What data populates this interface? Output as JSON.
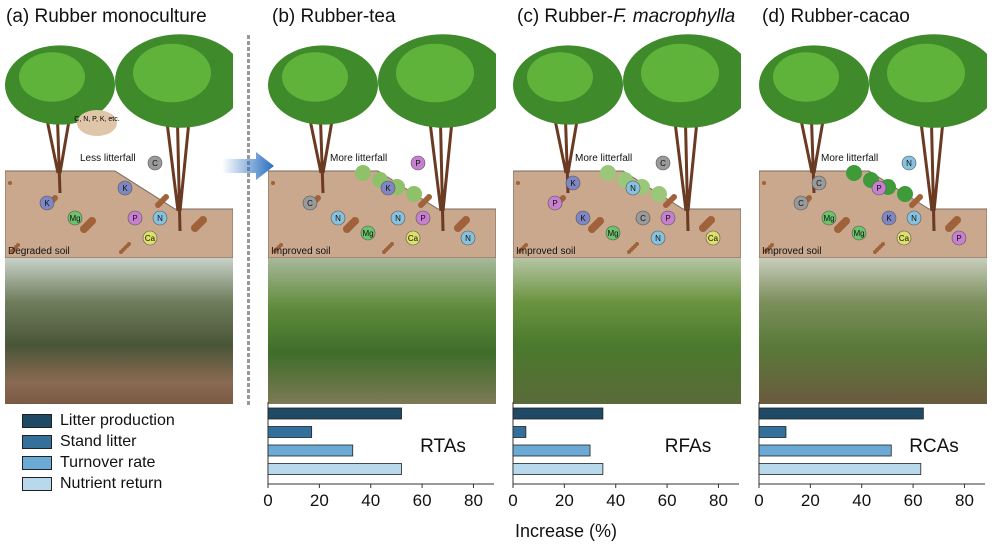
{
  "panels": [
    {
      "title": "(a) Rubber monoculture",
      "litter_label": "Less litterfall",
      "soil_label": "Degraded soil",
      "bubble": "C, N, P, K, etc.",
      "nutrients": [
        "C",
        "K",
        "K",
        "Mg",
        "P",
        "N",
        "Ca"
      ]
    },
    {
      "title": "(b) Rubber-tea",
      "litter_label": "More litterfall",
      "soil_label": "Improved soil",
      "nutrients": [
        "P",
        "C",
        "K",
        "N",
        "N",
        "P",
        "Ca",
        "Mg",
        "N"
      ]
    },
    {
      "title_prefix": "(c) Rubber-",
      "title_italic": "F. macrophylla",
      "litter_label": "More litterfall",
      "soil_label": "Improved soil",
      "nutrients": [
        "C",
        "P",
        "N",
        "K",
        "C",
        "P",
        "N",
        "Mg",
        "Ca",
        "K"
      ]
    },
    {
      "title": "(d) Rubber-cacao",
      "litter_label": "More litterfall",
      "soil_label": "Improved soil",
      "nutrients": [
        "N",
        "C",
        "P",
        "Mg",
        "K",
        "N",
        "Ca",
        "Mg",
        "P",
        "C"
      ]
    }
  ],
  "nutrient_colors": {
    "C": "#9a9a9a",
    "K": "#7f86c4",
    "Mg": "#6cc46a",
    "P": "#c77fd0",
    "Ca": "#dde06a",
    "N": "#86c2de"
  },
  "legend": [
    {
      "label": "Litter production",
      "color": "#1f4a66"
    },
    {
      "label": "Stand litter",
      "color": "#33719c"
    },
    {
      "label": "Turnover rate",
      "color": "#6aaad4"
    },
    {
      "label": "Nutrient return",
      "color": "#b8d9ec"
    }
  ],
  "chart_data": [
    {
      "type": "bar",
      "orientation": "horizontal",
      "label": "RTAs",
      "categories": [
        "Litter production",
        "Stand litter",
        "Turnover rate",
        "Nutrient return"
      ],
      "values": [
        52,
        17,
        33,
        52
      ],
      "xlim": [
        0,
        88
      ],
      "xticks": [
        0,
        20,
        40,
        60,
        80
      ]
    },
    {
      "type": "bar",
      "orientation": "horizontal",
      "label": "RFAs",
      "categories": [
        "Litter production",
        "Stand litter",
        "Turnover rate",
        "Nutrient return"
      ],
      "values": [
        35,
        5,
        30,
        35
      ],
      "xlim": [
        0,
        88
      ],
      "xticks": [
        0,
        20,
        40,
        60,
        80
      ]
    },
    {
      "type": "bar",
      "orientation": "horizontal",
      "label": "RCAs",
      "categories": [
        "Litter production",
        "Stand litter",
        "Turnover rate",
        "Nutrient return"
      ],
      "values": [
        64,
        10.5,
        51.5,
        63
      ],
      "xlim": [
        0,
        88
      ],
      "xticks": [
        0,
        20,
        40,
        60,
        80
      ]
    }
  ],
  "xlabel": "Increase (%)"
}
